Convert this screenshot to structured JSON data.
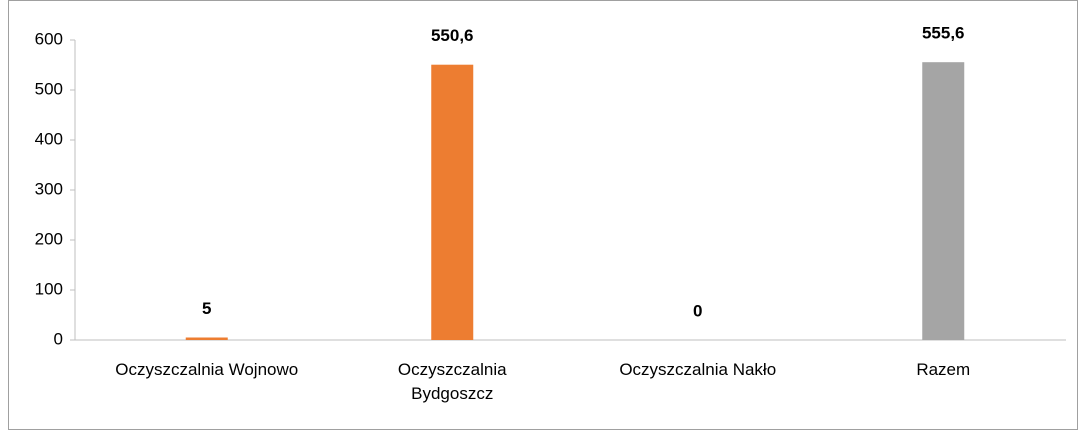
{
  "chart_data": {
    "type": "bar",
    "categories": [
      "Oczyszczalnia Wojnowo",
      "Oczyszczalnia Bydgoszcz",
      "Oczyszczalnia Nakło",
      "Razem"
    ],
    "values": [
      5,
      550.6,
      0,
      555.6
    ],
    "value_labels": [
      "5",
      "550,6",
      "0",
      "555,6"
    ],
    "colors": [
      "#ED7D31",
      "#ED7D31",
      "#ED7D31",
      "#A5A5A5"
    ],
    "ylim": [
      0,
      600
    ],
    "yticks": [
      0,
      100,
      200,
      300,
      400,
      500,
      600
    ],
    "grid": false
  }
}
